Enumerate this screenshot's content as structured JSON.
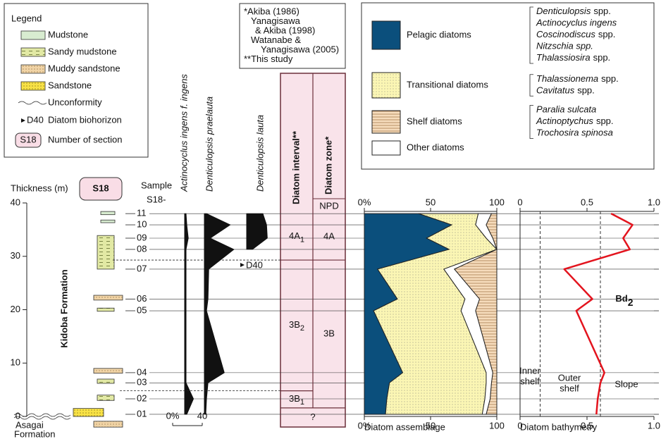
{
  "legend": {
    "title": "Legend",
    "items": [
      "Mudstone",
      "Sandy mudstone",
      "Muddy sandstone",
      "Sandstone",
      "Unconformity"
    ],
    "biohorizon": {
      "code": "D40",
      "label": "Diatom biohorizon"
    },
    "section": {
      "code": "S18",
      "label": "Number of section"
    }
  },
  "references": [
    "*Akiba (1986)",
    "Yanagisawa",
    "& Akiba (1998)",
    "Watanabe &",
    "Yanagisawa (2005)",
    "**This study"
  ],
  "section": {
    "axis_label": "Thickness (m)",
    "label": "S18",
    "sample_header": [
      "Sample",
      "S18-"
    ],
    "formation": "Kidoba Formation",
    "underlying": [
      "Asagai",
      "Formation"
    ],
    "ylim": [
      0,
      40
    ],
    "yticks": [
      0,
      10,
      20,
      30,
      40
    ],
    "samples": [
      "11",
      "10",
      "09",
      "08",
      "07",
      "06",
      "05",
      "04",
      "03",
      "02",
      "01"
    ],
    "depths": [
      38.0,
      35.9,
      33.4,
      31.3,
      27.6,
      22.0,
      19.8,
      8.2,
      6.3,
      3.3,
      0.4
    ],
    "beds": [
      {
        "lithology": "Mudstone",
        "top": 38.4,
        "base": 37.8
      },
      {
        "lithology": "Mudstone",
        "top": 36.8,
        "base": 36.3
      },
      {
        "lithology": "Sandy mudstone",
        "top": 33.9,
        "base": 27.6
      },
      {
        "lithology": "Muddy sandstone",
        "top": 22.7,
        "base": 21.8
      },
      {
        "lithology": "Sandy mudstone",
        "top": 20.3,
        "base": 19.7
      },
      {
        "lithology": "Muddy sandstone",
        "top": 9.0,
        "base": 8.1
      },
      {
        "lithology": "Sandy mudstone",
        "top": 7.0,
        "base": 6.2
      },
      {
        "lithology": "Sandy mudstone",
        "top": 4.0,
        "base": 3.0
      },
      {
        "lithology": "Sandstone",
        "top": 1.5,
        "base": 0
      },
      {
        "lithology": "Muddy sandstone",
        "top": -0.9,
        "base": -2.0
      }
    ],
    "horizon": {
      "code": "D40",
      "depth": 29.3
    }
  },
  "taxa": {
    "scale_ticks": [
      {
        "value": 0,
        "label": "0%"
      },
      40
    ],
    "series": [
      {
        "name": "Actinocyclus ingens f. ingens",
        "values": [
          2,
          3,
          5,
          2,
          2,
          2,
          2,
          2,
          2,
          12,
          3
        ]
      },
      {
        "name": "Denticulopsis praelauta",
        "values": [
          3,
          35,
          8,
          40,
          6,
          5,
          3,
          27,
          5,
          3,
          2
        ]
      },
      {
        "name": "Denticulopsis lauta",
        "values": [
          22,
          27,
          28,
          8,
          null,
          null,
          null,
          null,
          null,
          null,
          null
        ]
      }
    ]
  },
  "zonation": {
    "interval_header": "Diatom interval**",
    "zone_header": "Diatom zone*",
    "zone_scheme": "NPD",
    "intervals": [
      {
        "label": "4A",
        "sub": "1"
      },
      {
        "label": "3B",
        "sub": "2"
      },
      {
        "label": "3B",
        "sub": "1"
      }
    ],
    "interval_boundaries": [
      29.3,
      4.8,
      1.6
    ],
    "zones": [
      "4A",
      "3B"
    ],
    "zone_boundaries": [
      29.3,
      1.6
    ],
    "unknown": "?"
  },
  "chart_data": [
    {
      "type": "stacked-area",
      "xlabel": "Diatom assemblage",
      "xlim": [
        0,
        100
      ],
      "xticks": [
        {
          "value": 0,
          "label": "0%"
        },
        50,
        100
      ],
      "series": [
        {
          "name": "Pelagic diatoms",
          "color": "#0b4f7c",
          "taxa": [
            {
              "italic": "Denticulopsis",
              "plain": "spp."
            },
            {
              "italic": "Actinocyclus ingens"
            },
            {
              "italic": "Coscinodiscus",
              "plain": "spp."
            },
            {
              "italic": "Nitzschia spp."
            },
            {
              "italic": "Thalassiosira",
              "plain": "spp."
            }
          ],
          "values": [
            41,
            66,
            47,
            64,
            10,
            25,
            7,
            29,
            19,
            17,
            16
          ]
        },
        {
          "name": "Transitional diatoms",
          "color": "#fbf6b4",
          "pattern": "dots",
          "taxa": [
            {
              "italic": "Thalassionema",
              "plain": "spp."
            },
            {
              "italic": "Cavitatus",
              "plain": "spp."
            }
          ],
          "values": [
            45,
            18,
            45,
            36,
            50,
            51,
            66,
            63,
            73,
            74,
            73
          ]
        },
        {
          "name": "Shelf diatoms",
          "color": "#f6dcbc",
          "pattern": "hatch",
          "taxa": [
            {
              "italic": "Paralia sulcata"
            },
            {
              "italic": "Actinoptychus",
              "plain": "spp."
            },
            {
              "italic": "Trochosira spinosa"
            }
          ],
          "values": [
            4,
            8,
            3,
            0,
            32,
            13,
            16,
            3,
            4,
            5,
            8
          ]
        },
        {
          "name": "Other diatoms",
          "color": "#ffffff",
          "values": [
            10,
            8,
            5,
            0,
            8,
            11,
            11,
            5,
            4,
            4,
            3
          ]
        }
      ]
    },
    {
      "type": "line",
      "xlabel": "Diatom bathymetry",
      "xlim": [
        0,
        1
      ],
      "xticks": [
        0,
        0.5,
        {
          "value": 1,
          "label": "1.0"
        }
      ],
      "color": "#e3141e",
      "values": [
        0.68,
        0.84,
        0.77,
        0.82,
        0.33,
        0.54,
        0.42,
        0.63,
        0.6,
        0.58,
        0.57
      ],
      "zone_boundaries": [
        0.15,
        0.6
      ],
      "zones": [
        [
          "Inner",
          "shelf"
        ],
        [
          "Outer",
          "shelf"
        ],
        [
          "Slope"
        ]
      ],
      "annotation": {
        "label": "Bd",
        "sub": "2"
      }
    }
  ]
}
